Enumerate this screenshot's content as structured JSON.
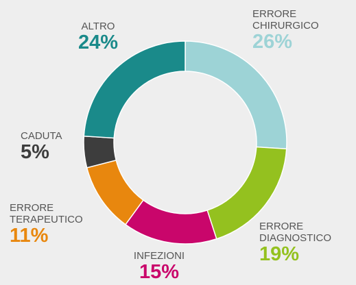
{
  "chart_data": {
    "type": "donut",
    "categories": [
      "ERRORE CHIRURGICO",
      "ERRORE DIAGNOSTICO",
      "INFEZIONI",
      "ERRORE TERAPEUTICO",
      "CADUTA",
      "ALTRO"
    ],
    "values": [
      26,
      19,
      15,
      11,
      5,
      24
    ],
    "value_labels": [
      "26%",
      "19%",
      "15%",
      "11%",
      "5%",
      "24%"
    ],
    "colors": [
      "#9dd3d6",
      "#94c11f",
      "#c9066b",
      "#e8870e",
      "#3d3d3d",
      "#1a8a8a"
    ]
  }
}
